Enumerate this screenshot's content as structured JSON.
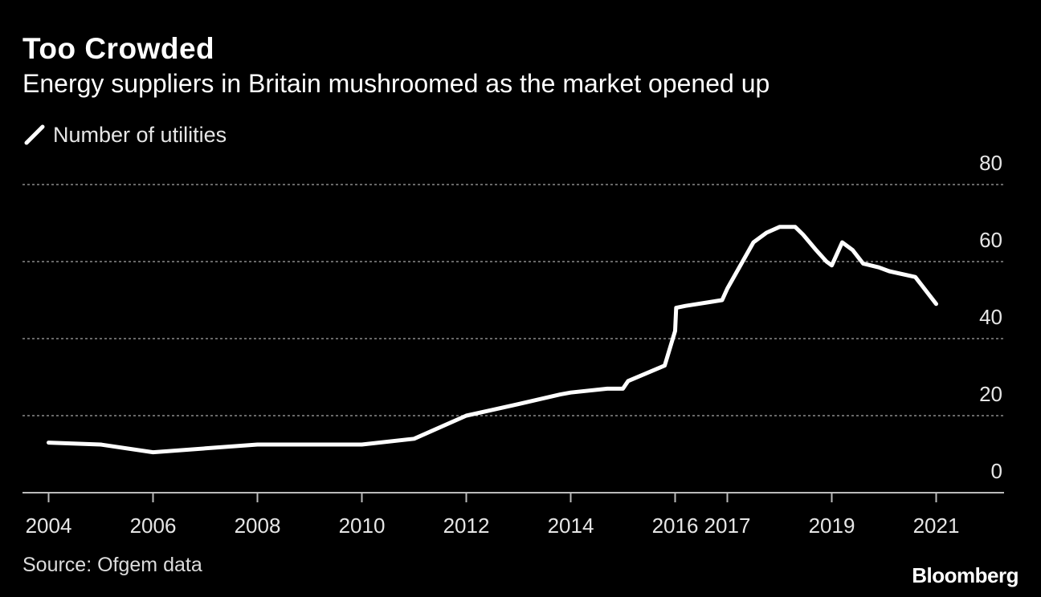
{
  "chart_data": {
    "type": "line",
    "title": "Too Crowded",
    "subtitle": "Energy suppliers in Britain mushroomed as the market opened up",
    "xlabel": "",
    "ylabel": "",
    "ylim": [
      0,
      80
    ],
    "xlim": [
      2003.5,
      2022.3
    ],
    "yticks": [
      0,
      20,
      40,
      60,
      80
    ],
    "xticks": [
      2004,
      2006,
      2008,
      2010,
      2012,
      2014,
      2016,
      2017,
      2019,
      2021
    ],
    "xtick_labels": [
      "2004",
      "2006",
      "2008",
      "2010",
      "2012",
      "2014",
      "2016",
      "2017",
      "2019",
      "2021"
    ],
    "grid": true,
    "legend": "top-left",
    "series": [
      {
        "name": "Number of utilities",
        "color": "#ffffff",
        "x": [
          2004,
          2005,
          2006,
          2007,
          2008,
          2009,
          2010,
          2011,
          2012,
          2013,
          2013.8,
          2014,
          2014.7,
          2015,
          2015.05,
          2015.1,
          2015.8,
          2016,
          2016.02,
          2016.2,
          2016.9,
          2017,
          2017.5,
          2017.75,
          2018.0,
          2018.3,
          2018.45,
          2018.7,
          2018.9,
          2019.0,
          2019.2,
          2019.4,
          2019.6,
          2019.9,
          2020.1,
          2020.6,
          2021.0
        ],
        "y": [
          13,
          12.5,
          10.5,
          11.5,
          12.5,
          12.5,
          12.5,
          14,
          20,
          23,
          25.5,
          26,
          27,
          27,
          28,
          29,
          33,
          42,
          48,
          48.5,
          50,
          53,
          65,
          67.5,
          69,
          69,
          67,
          63,
          60,
          59,
          65,
          63,
          59.5,
          58.5,
          57.5,
          56,
          49
        ]
      }
    ]
  },
  "legend": {
    "label": "Number of utilities"
  },
  "footer": {
    "source": "Source: Ofgem data",
    "brand": "Bloomberg"
  },
  "colors": {
    "background": "#000000",
    "line": "#ffffff",
    "grid": "#8a8a8a",
    "axis": "#bbbbbb",
    "tick_text": "#e6e6e6"
  }
}
